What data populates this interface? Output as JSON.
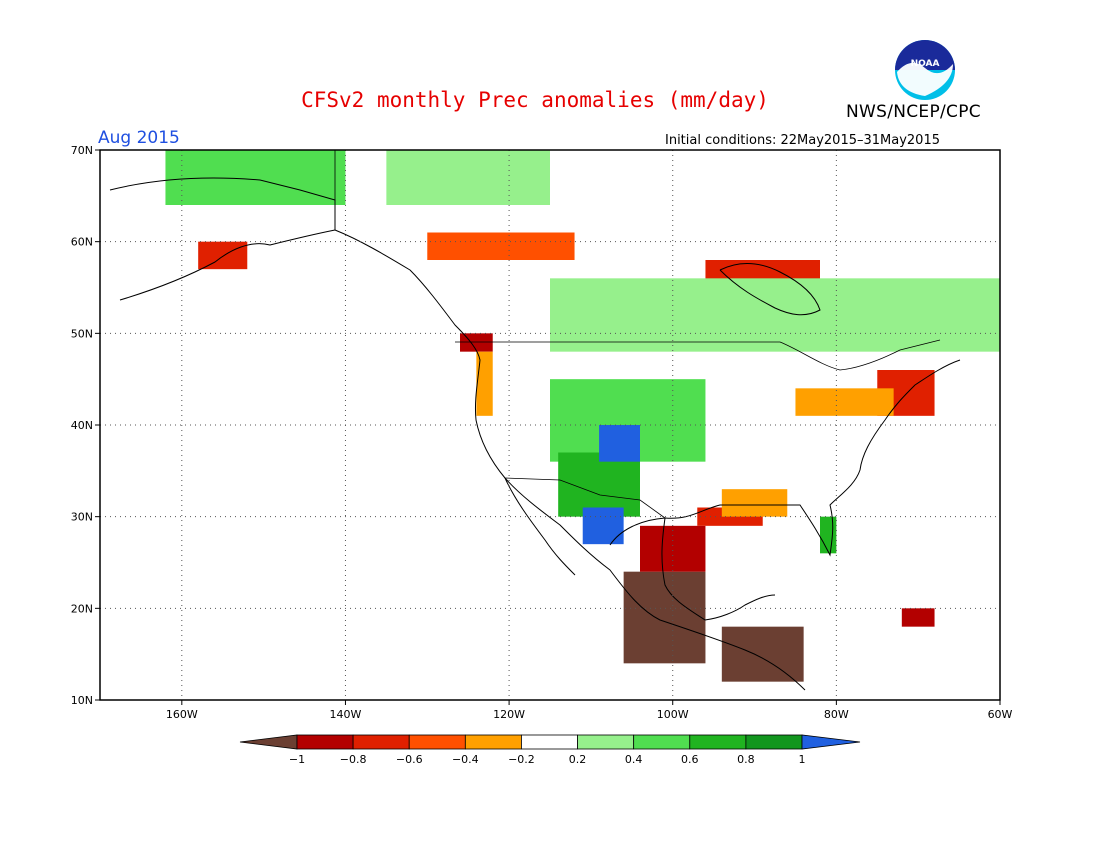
{
  "header": {
    "title": "CFSv2 monthly Prec anomalies (mm/day)",
    "agency": "NWS/NCEP/CPC",
    "valid_month": "Aug 2015",
    "initial_conditions": "Initial conditions: 22May2015–31May2015",
    "logo_text": "NOAA"
  },
  "map": {
    "lon_range": [
      -170,
      -60
    ],
    "lat_range": [
      10,
      70
    ],
    "lon_ticks": [
      {
        "value": -160,
        "label": "160W"
      },
      {
        "value": -140,
        "label": "140W"
      },
      {
        "value": -120,
        "label": "120W"
      },
      {
        "value": -100,
        "label": "100W"
      },
      {
        "value": -80,
        "label": "80W"
      },
      {
        "value": -60,
        "label": "60W"
      }
    ],
    "lat_ticks": [
      {
        "value": 70,
        "label": "70N"
      },
      {
        "value": 60,
        "label": "60N"
      },
      {
        "value": 50,
        "label": "50N"
      },
      {
        "value": 40,
        "label": "40N"
      },
      {
        "value": 30,
        "label": "30N"
      },
      {
        "value": 20,
        "label": "20N"
      },
      {
        "value": 10,
        "label": "10N"
      }
    ],
    "grid": "dotted"
  },
  "colorbar": {
    "boundaries": [
      "−1",
      "−0.8",
      "−0.6",
      "−0.4",
      "−0.2",
      "0.2",
      "0.4",
      "0.6",
      "0.8",
      "1"
    ],
    "colors": [
      "#6b3f32",
      "#b30000",
      "#e02000",
      "#ff5000",
      "#ffa000",
      "#ffffff",
      "#96f08c",
      "#50de50",
      "#20b420",
      "#12961e",
      "#2060e0"
    ]
  },
  "anomaly_regions": [
    {
      "name": "mexico-dry",
      "color": "#6b3f32",
      "lon": [
        -106,
        -96
      ],
      "lat": [
        14,
        24
      ]
    },
    {
      "name": "central-america-dry",
      "color": "#6b3f32",
      "lon": [
        -94,
        -84
      ],
      "lat": [
        12,
        18
      ]
    },
    {
      "name": "texas-coast-dry",
      "color": "#b30000",
      "lon": [
        -104,
        -96
      ],
      "lat": [
        24,
        29
      ]
    },
    {
      "name": "gulf-coast-dry",
      "color": "#e02000",
      "lon": [
        -97,
        -89
      ],
      "lat": [
        29,
        31
      ]
    },
    {
      "name": "southeast-dry",
      "color": "#ffa000",
      "lon": [
        -94,
        -86
      ],
      "lat": [
        30,
        33
      ]
    },
    {
      "name": "northeast-dry",
      "color": "#e02000",
      "lon": [
        -75,
        -68
      ],
      "lat": [
        41,
        46
      ]
    },
    {
      "name": "great-lakes-dry",
      "color": "#ffa000",
      "lon": [
        -85,
        -73
      ],
      "lat": [
        41,
        44
      ]
    },
    {
      "name": "pacific-nw-dry",
      "color": "#b30000",
      "lon": [
        -126,
        -122
      ],
      "lat": [
        48,
        50
      ]
    },
    {
      "name": "west-coast-dry",
      "color": "#ffa000",
      "lon": [
        -124,
        -122
      ],
      "lat": [
        41,
        48
      ]
    },
    {
      "name": "canada-dry",
      "color": "#ff5000",
      "lon": [
        -130,
        -112
      ],
      "lat": [
        58,
        61
      ]
    },
    {
      "name": "alaska-dry",
      "color": "#e02000",
      "lon": [
        -158,
        -152
      ],
      "lat": [
        57,
        60
      ]
    },
    {
      "name": "hudson-dry",
      "color": "#e02000",
      "lon": [
        -96,
        -82
      ],
      "lat": [
        55,
        58
      ]
    },
    {
      "name": "rockies-wet",
      "color": "#50de50",
      "lon": [
        -115,
        -96
      ],
      "lat": [
        36,
        45
      ]
    },
    {
      "name": "southwest-wet",
      "color": "#20b420",
      "lon": [
        -114,
        -104
      ],
      "lat": [
        30,
        37
      ]
    },
    {
      "name": "colorado-wet",
      "color": "#2060e0",
      "lon": [
        -109,
        -104
      ],
      "lat": [
        36,
        40
      ]
    },
    {
      "name": "sierra-madre-wet",
      "color": "#2060e0",
      "lon": [
        -111,
        -106
      ],
      "lat": [
        27,
        31
      ]
    },
    {
      "name": "florida-wet",
      "color": "#20b420",
      "lon": [
        -82,
        -80
      ],
      "lat": [
        26,
        30
      ]
    },
    {
      "name": "canada-north-wet",
      "color": "#96f08c",
      "lon": [
        -115,
        -60
      ],
      "lat": [
        48,
        56
      ]
    },
    {
      "name": "alaska-north-wet",
      "color": "#50de50",
      "lon": [
        -162,
        -140
      ],
      "lat": [
        64,
        70
      ]
    },
    {
      "name": "arctic-wet",
      "color": "#96f08c",
      "lon": [
        -135,
        -115
      ],
      "lat": [
        64,
        70
      ]
    },
    {
      "name": "caribbean-dry",
      "color": "#b30000",
      "lon": [
        -72,
        -68
      ],
      "lat": [
        18,
        20
      ]
    }
  ]
}
